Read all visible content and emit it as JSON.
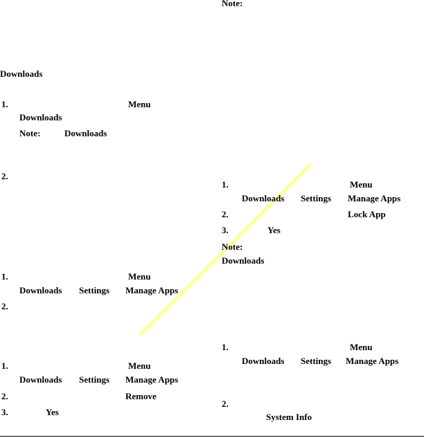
{
  "left": {
    "heading": "Downloads",
    "s1": {
      "num": "1.",
      "menu": "Menu",
      "downloads": "Downloads",
      "note_label": "Note:",
      "note_downloads": "Downloads"
    },
    "s2": {
      "num": "2."
    },
    "s3": {
      "num1": "1.",
      "menu": "Menu",
      "downloads": "Downloads",
      "settings": "Settings",
      "manage_apps": "Manage Apps",
      "num2": "2."
    },
    "s4": {
      "num1": "1.",
      "menu": "Menu",
      "downloads": "Downloads",
      "settings": "Settings",
      "manage_apps": "Manage Apps",
      "num2": "2.",
      "remove": "Remove",
      "num3": "3.",
      "yes": "Yes"
    }
  },
  "right": {
    "top_note": "Note:",
    "lock": {
      "num1": "1.",
      "menu": "Menu",
      "downloads": "Downloads",
      "settings": "Settings",
      "manage_apps": "Manage Apps",
      "num2": "2.",
      "lock_app": "Lock App",
      "num3": "3.",
      "yes": "Yes",
      "note_label": "Note:",
      "note_downloads": "Downloads"
    },
    "info": {
      "num1": "1.",
      "menu": "Menu",
      "downloads": "Downloads",
      "settings": "Settings",
      "manage_apps": "Manage Apps",
      "num2": "2.",
      "system_info": "System Info"
    }
  },
  "colors": {
    "highlight": "#ffff99"
  }
}
